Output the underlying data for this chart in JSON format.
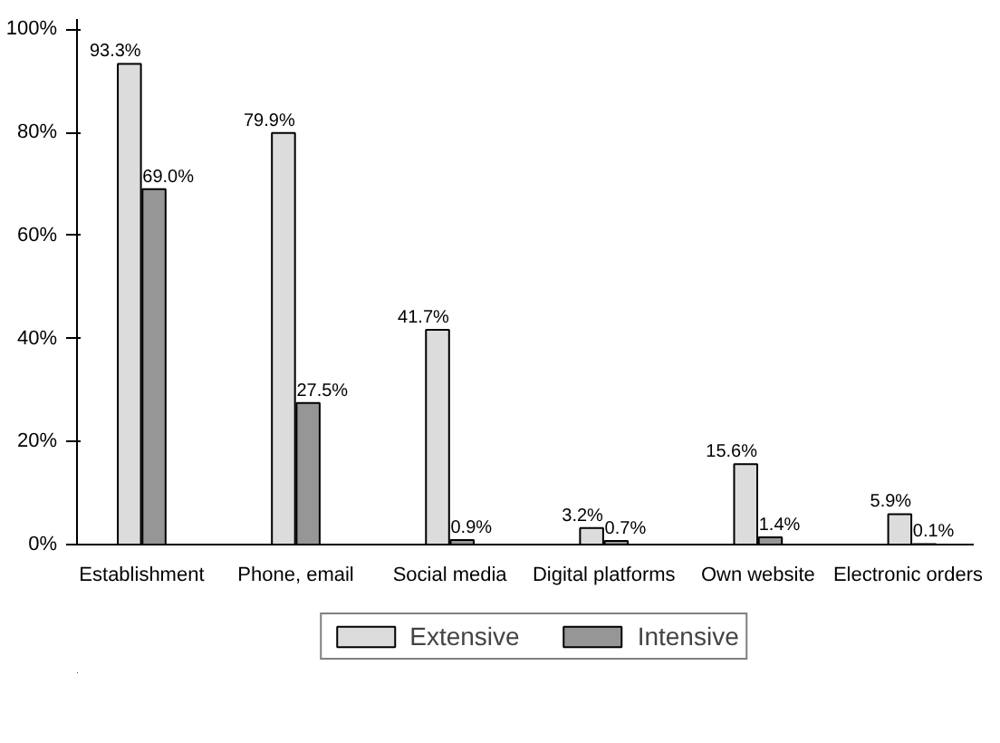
{
  "chart_data": {
    "type": "bar",
    "categories": [
      "Establishment",
      "Phone, email",
      "Social media",
      "Digital platforms",
      "Own website",
      "Electronic orders"
    ],
    "series": [
      {
        "name": "Extensive",
        "color": "#dcdcdc",
        "values": [
          93.3,
          79.9,
          41.7,
          3.2,
          15.6,
          5.9
        ],
        "value_labels": [
          "93.3%",
          "79.9%",
          "41.7%",
          "3.2%",
          "15.6%",
          "5.9%"
        ]
      },
      {
        "name": "Intensive",
        "color": "#969696",
        "values": [
          69.0,
          27.5,
          0.9,
          0.7,
          1.4,
          0.1
        ],
        "value_labels": [
          "69.0%",
          "27.5%",
          "0.9%",
          "0.7%",
          "1.4%",
          "0.1%"
        ]
      }
    ],
    "ylim": [
      0,
      102
    ],
    "yticks": [
      {
        "value": 0,
        "label": "0%"
      },
      {
        "value": 20,
        "label": "20%"
      },
      {
        "value": 40,
        "label": "40%"
      },
      {
        "value": 60,
        "label": "60%"
      },
      {
        "value": 80,
        "label": "80%"
      },
      {
        "value": 100,
        "label": "100%"
      }
    ],
    "grid": false,
    "legend": "bottom"
  }
}
